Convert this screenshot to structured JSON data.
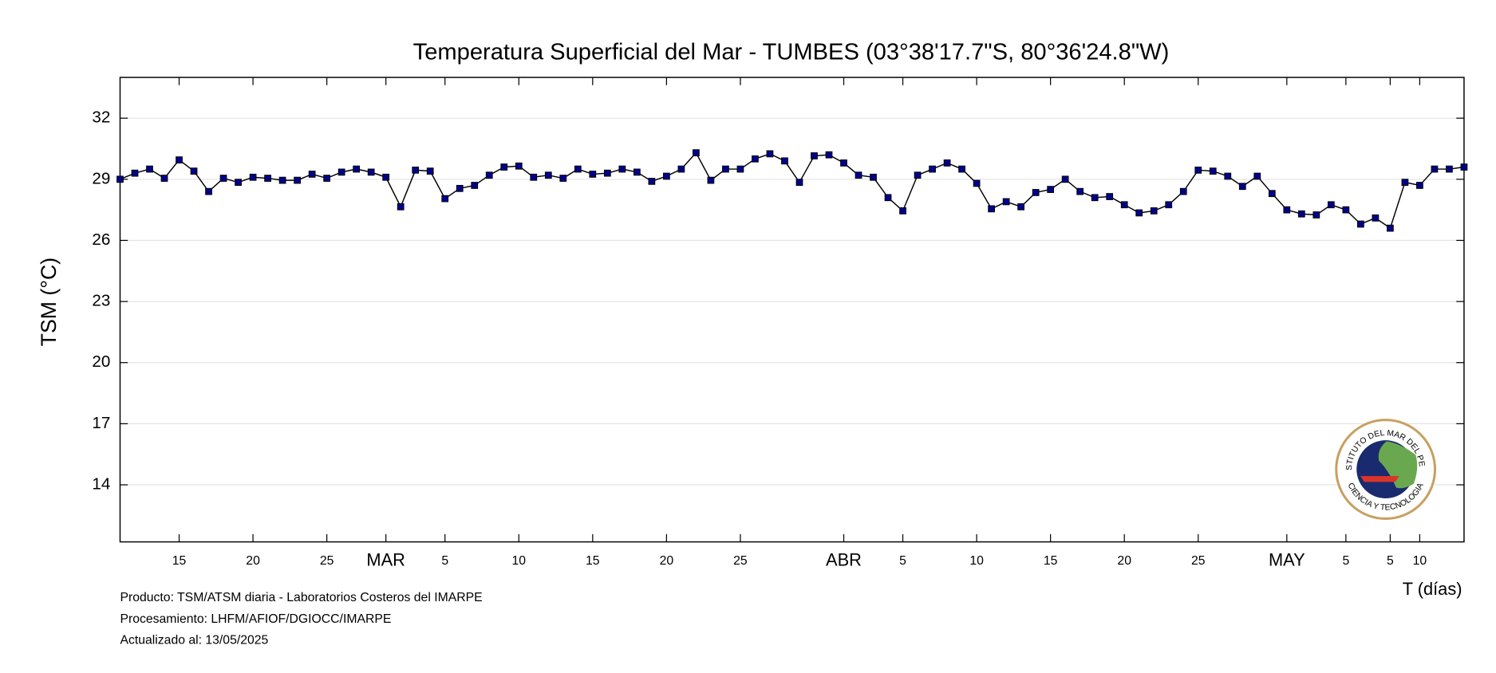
{
  "chart_data": {
    "type": "line",
    "title": "Temperatura Superficial del Mar - TUMBES (03°38'17.7\"S, 80°36'24.8\"W)",
    "y_label": "TSM (°C)",
    "x_label": "T (días)",
    "annotations": [
      "Producto: TSM/ATSM diaria - Laboratorios Costeros del IMARPE",
      "Procesamiento: LHFM/AFIOF/DGIOCC/IMARPE",
      "Actualizado al: 13/05/2025"
    ],
    "logo_text": [
      "INSTITUTO DEL MAR DEL PERU",
      "CIENCIA Y TECNOLOGIA"
    ],
    "color": "#00008b",
    "grid": true,
    "xlim": [
      42,
      133
    ],
    "ylim": [
      11.2,
      34
    ],
    "yticks": [
      14,
      17,
      20,
      23,
      26,
      29,
      32
    ],
    "xticks": [
      {
        "value": 46,
        "label": "15"
      },
      {
        "value": 51,
        "label": "20"
      },
      {
        "value": 56,
        "label": "25"
      },
      {
        "value": 60,
        "label": "MAR"
      },
      {
        "value": 64,
        "label": "5"
      },
      {
        "value": 69,
        "label": "10"
      },
      {
        "value": 74,
        "label": "15"
      },
      {
        "value": 79,
        "label": "20"
      },
      {
        "value": 84,
        "label": "25"
      },
      {
        "value": 91,
        "label": "ABR"
      },
      {
        "value": 95,
        "label": "5"
      },
      {
        "value": 100,
        "label": "10"
      },
      {
        "value": 105,
        "label": "15"
      },
      {
        "value": 110,
        "label": "20"
      },
      {
        "value": 115,
        "label": "25"
      },
      {
        "value": 121,
        "label": "MAY"
      },
      {
        "value": 125,
        "label": "5"
      },
      {
        "value": 128,
        "label": "5"
      },
      {
        "value": 130,
        "label": "10"
      }
    ],
    "x": [
      42,
      43,
      44,
      45,
      46,
      47,
      48,
      49,
      50,
      51,
      52,
      53,
      54,
      55,
      56,
      57,
      58,
      59,
      60,
      61,
      62,
      63,
      64,
      65,
      66,
      67,
      68,
      69,
      70,
      71,
      72,
      73,
      74,
      75,
      76,
      77,
      78,
      79,
      80,
      81,
      82,
      83,
      84,
      85,
      86,
      87,
      88,
      89,
      90,
      91,
      92,
      93,
      94,
      95,
      96,
      97,
      98,
      99,
      100,
      101,
      102,
      103,
      104,
      105,
      106,
      107,
      108,
      109,
      110,
      111,
      112,
      113,
      114,
      115,
      116,
      117,
      118,
      119,
      120,
      121,
      122,
      123,
      124,
      125,
      126,
      127,
      128,
      129,
      130,
      131,
      132,
      133
    ],
    "values": [
      29.0,
      29.3,
      29.5,
      29.05,
      29.95,
      29.4,
      28.4,
      29.05,
      28.85,
      29.1,
      29.05,
      28.95,
      28.95,
      29.25,
      29.05,
      29.35,
      29.5,
      29.35,
      29.1,
      27.65,
      29.45,
      29.4,
      28.05,
      28.55,
      28.7,
      29.2,
      29.6,
      29.65,
      29.1,
      29.2,
      29.05,
      29.5,
      29.25,
      29.3,
      29.5,
      29.35,
      28.9,
      29.15,
      29.5,
      30.3,
      28.95,
      29.5,
      29.5,
      30.0,
      30.25,
      29.9,
      28.85,
      30.15,
      30.2,
      29.8,
      29.2,
      29.1,
      28.1,
      27.45,
      29.2,
      29.5,
      29.8,
      29.5,
      28.8,
      27.55,
      27.9,
      27.65,
      28.35,
      28.5,
      29.0,
      28.4,
      28.1,
      28.15,
      27.75,
      27.35,
      27.45,
      27.75,
      28.4,
      29.45,
      29.4,
      29.15,
      28.65,
      29.15,
      28.3,
      27.5,
      27.3,
      27.25,
      27.75,
      27.5,
      26.8,
      27.1,
      26.6,
      28.85,
      28.7,
      29.5,
      29.5,
      29.6
    ]
  }
}
